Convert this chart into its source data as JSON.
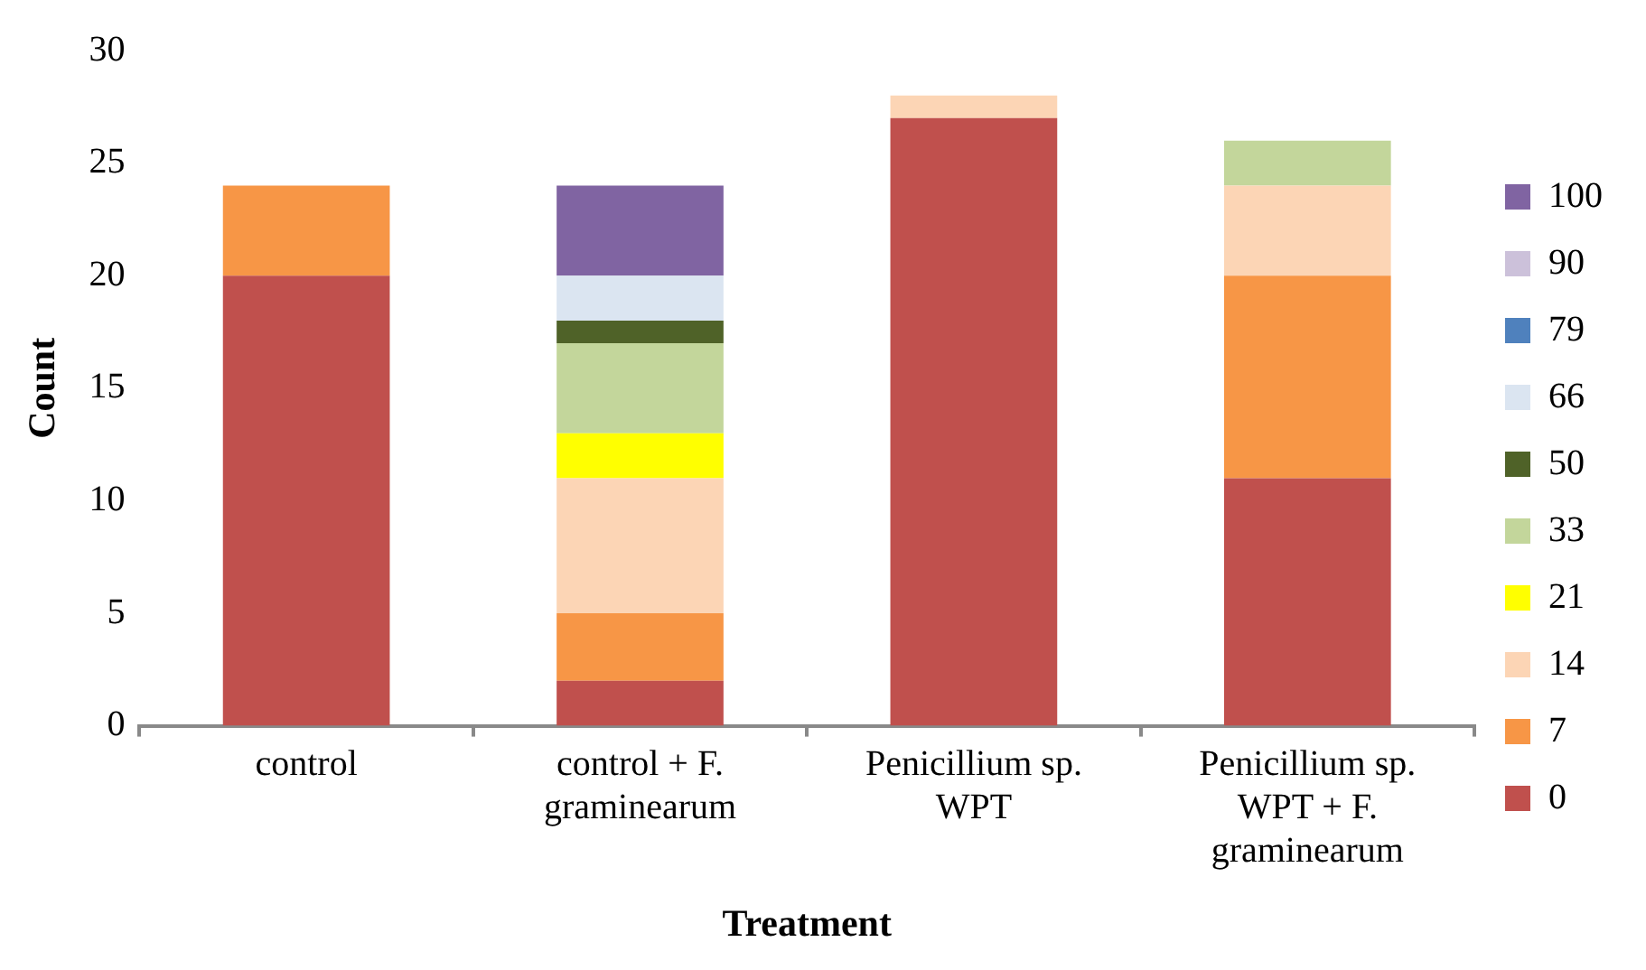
{
  "chart_data": {
    "type": "bar",
    "stacked": true,
    "xlabel": "Treatment",
    "ylabel": "Count",
    "categories": [
      "control",
      "control + F. graminearum",
      "Penicillium sp. WPT",
      "Penicillium sp. WPT + F. graminearum"
    ],
    "series": [
      {
        "name": "0",
        "color": "#c0504d",
        "values": [
          20,
          2,
          27,
          11
        ]
      },
      {
        "name": "7",
        "color": "#f79646",
        "values": [
          4,
          3,
          0,
          9
        ]
      },
      {
        "name": "14",
        "color": "#fcd5b5",
        "values": [
          0,
          6,
          1,
          4
        ]
      },
      {
        "name": "21",
        "color": "#ffff00",
        "values": [
          0,
          2,
          0,
          0
        ]
      },
      {
        "name": "33",
        "color": "#c3d69b",
        "values": [
          0,
          4,
          0,
          2
        ]
      },
      {
        "name": "50",
        "color": "#4f6228",
        "values": [
          0,
          1,
          0,
          0
        ]
      },
      {
        "name": "66",
        "color": "#dbe5f1",
        "values": [
          0,
          2,
          0,
          0
        ]
      },
      {
        "name": "79",
        "color": "#4f81bd",
        "values": [
          0,
          0,
          0,
          0
        ]
      },
      {
        "name": "90",
        "color": "#ccc1da",
        "values": [
          0,
          0,
          0,
          0
        ]
      },
      {
        "name": "100",
        "color": "#8064a2",
        "values": [
          0,
          4,
          0,
          0
        ]
      }
    ],
    "ylim": [
      0,
      30
    ],
    "yticks": [
      0,
      5,
      10,
      15,
      20,
      25,
      30
    ],
    "grid": false,
    "legend": "right"
  }
}
